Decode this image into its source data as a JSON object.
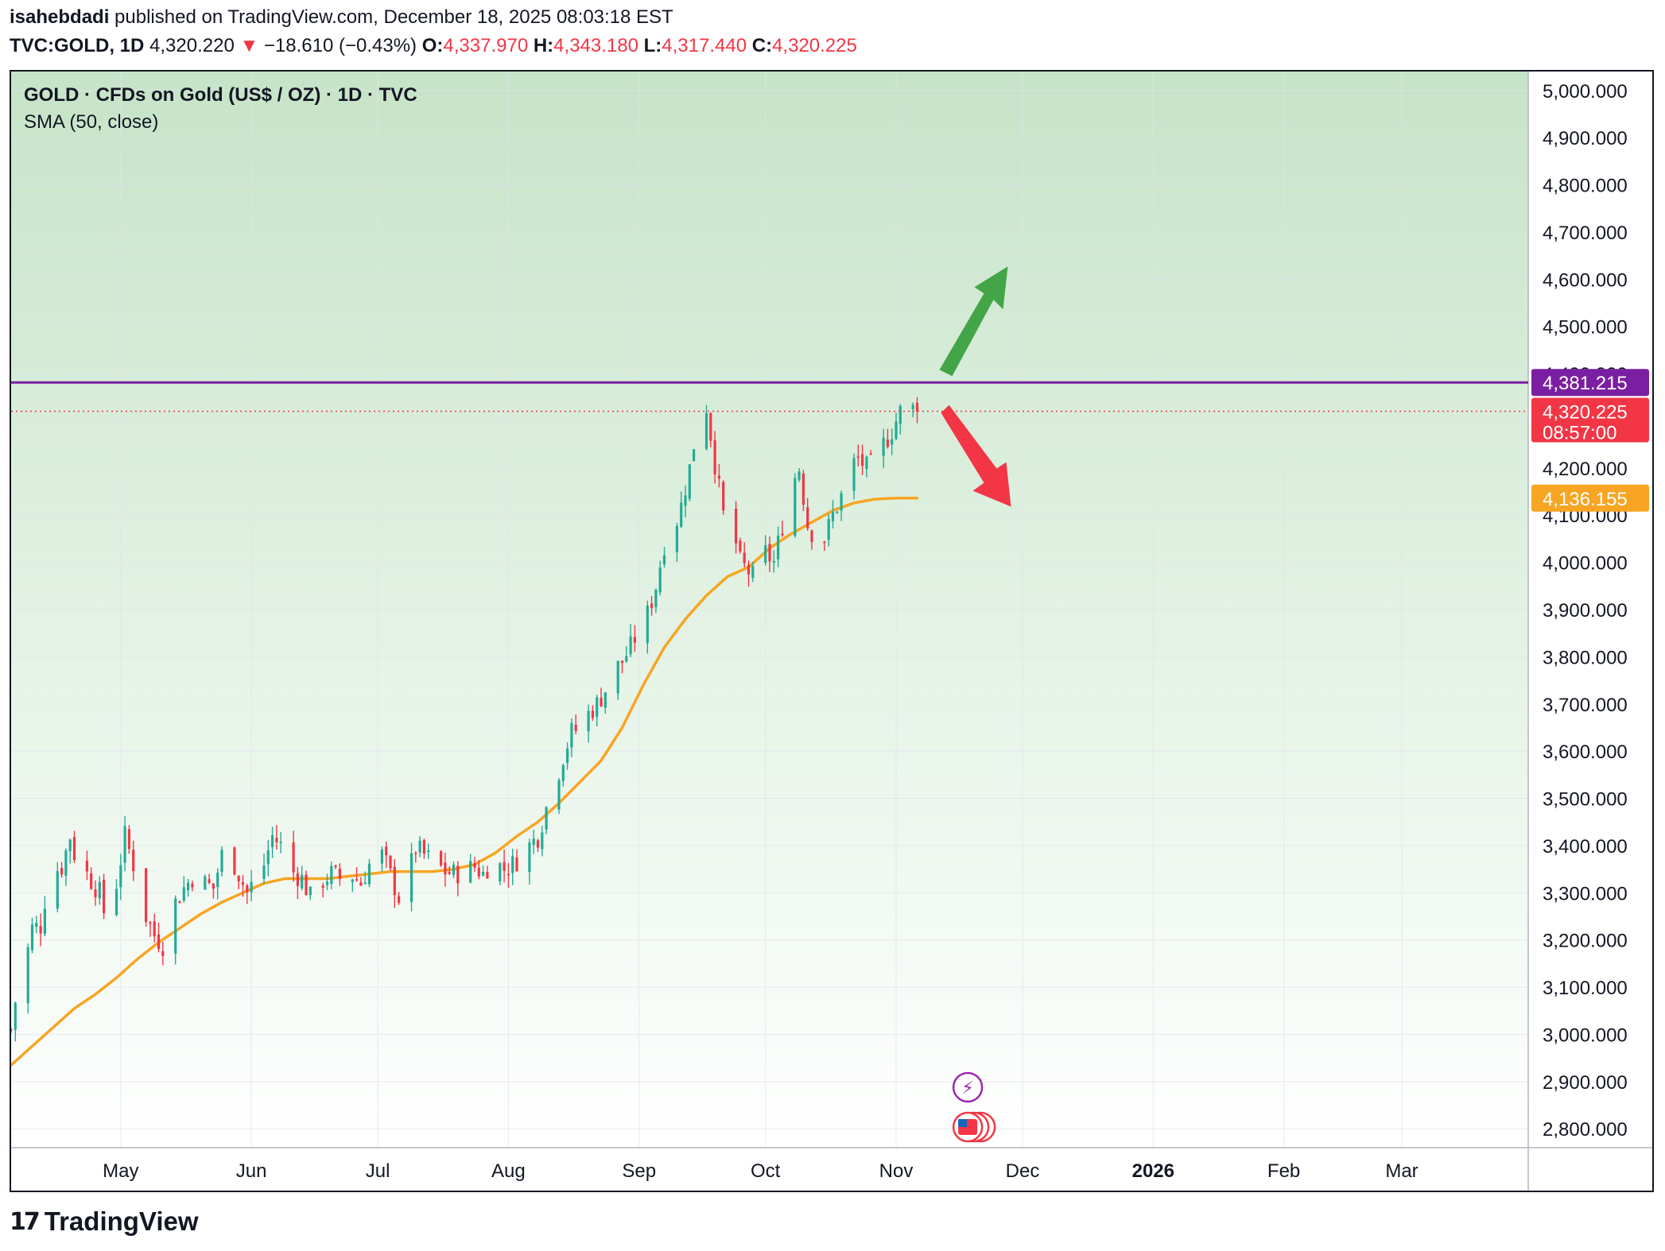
{
  "header": {
    "author": "isahebdadi",
    "published": "published on TradingView.com, December 18, 2025 08:03:18 EST",
    "symbol": "TVC:GOLD, 1D",
    "last": "4,320.220",
    "change": "−18.610 (−0.43%)",
    "o_label": "O:",
    "o": "4,337.970",
    "h_label": "H:",
    "h": "4,343.180",
    "l_label": "L:",
    "l": "4,317.440",
    "c_label": "C:",
    "c": "4,320.225",
    "down_icon": "triangle-down-icon"
  },
  "legend": {
    "title": "GOLD · CFDs on Gold (US$ / OZ) · 1D · TVC",
    "indicator": "SMA (50, close)"
  },
  "price_tags": {
    "resistance": "4,381.215",
    "last_price": "4,320.225",
    "countdown": "08:57:00",
    "sma": "4,136.155"
  },
  "footer": {
    "brand": "TradingView",
    "logo_icon": "tradingview-logo-icon"
  },
  "colors": {
    "up": "#22ab94",
    "down": "#f23645",
    "sma": "#f7a523",
    "resistance": "#7b1fa2",
    "arrow_up": "#43a547",
    "arrow_down": "#f23645",
    "bg_top": "#c6e4c8",
    "bg_bottom": "#ffffff",
    "sma_tag": "#f7a523",
    "last_tag": "#f23645",
    "res_tag": "#7b1fa2"
  },
  "chart_data": {
    "type": "candlestick",
    "title": "GOLD · CFDs on Gold (US$ / OZ) · 1D · TVC",
    "ylim": [
      2760,
      5040
    ],
    "y_ticks": [
      "2,800.000",
      "2,900.000",
      "3,000.000",
      "3,100.000",
      "3,200.000",
      "3,300.000",
      "3,400.000",
      "3,500.000",
      "3,600.000",
      "3,700.000",
      "3,800.000",
      "3,900.000",
      "4,000.000",
      "4,100.000",
      "4,200.000",
      "4,300.000",
      "4,400.000",
      "4,500.000",
      "4,600.000",
      "4,700.000",
      "4,800.000",
      "4,900.000",
      "5,000.000"
    ],
    "y_tick_values": [
      2800,
      2900,
      3000,
      3100,
      3200,
      3300,
      3400,
      3500,
      3600,
      3700,
      3800,
      3900,
      4000,
      4100,
      4200,
      4300,
      4400,
      4500,
      4600,
      4700,
      4800,
      4900,
      5000
    ],
    "x_labels": [
      "May",
      "Jun",
      "Jul",
      "Aug",
      "Sep",
      "Oct",
      "Nov",
      "Dec",
      "2026",
      "Feb",
      "Mar"
    ],
    "x_label_days": [
      29,
      60,
      90,
      121,
      152,
      182,
      213,
      243,
      274,
      305,
      333
    ],
    "x_start_day": 3,
    "x_end_day": 363,
    "resistance_level": 4381.215,
    "last_close": 4320.225,
    "sma_last": 4136.155,
    "close_path": [
      [
        3,
        3010
      ],
      [
        5,
        3130
      ],
      [
        7,
        3180
      ],
      [
        8,
        3225
      ],
      [
        10,
        3230
      ],
      [
        12,
        3340
      ],
      [
        15,
        3355
      ],
      [
        17,
        3420
      ],
      [
        19,
        3345
      ],
      [
        21,
        3340
      ],
      [
        24,
        3300
      ],
      [
        26,
        3220
      ],
      [
        28,
        3320
      ],
      [
        30,
        3420
      ],
      [
        33,
        3330
      ],
      [
        35,
        3250
      ],
      [
        37,
        3210
      ],
      [
        39,
        3190
      ],
      [
        42,
        3280
      ],
      [
        44,
        3310
      ],
      [
        47,
        3345
      ],
      [
        49,
        3320
      ],
      [
        51,
        3310
      ],
      [
        53,
        3380
      ],
      [
        56,
        3360
      ],
      [
        59,
        3300
      ],
      [
        61,
        3330
      ],
      [
        63,
        3360
      ],
      [
        65,
        3420
      ],
      [
        67,
        3400
      ],
      [
        69,
        3350
      ],
      [
        72,
        3330
      ],
      [
        74,
        3290
      ],
      [
        76,
        3320
      ],
      [
        79,
        3340
      ],
      [
        81,
        3330
      ],
      [
        83,
        3345
      ],
      [
        86,
        3320
      ],
      [
        88,
        3360
      ],
      [
        90,
        3400
      ],
      [
        92,
        3360
      ],
      [
        95,
        3290
      ],
      [
        97,
        3330
      ],
      [
        99,
        3395
      ],
      [
        101,
        3380
      ],
      [
        104,
        3360
      ],
      [
        106,
        3345
      ],
      [
        108,
        3340
      ],
      [
        110,
        3345
      ],
      [
        113,
        3355
      ],
      [
        115,
        3340
      ],
      [
        117,
        3370
      ],
      [
        120,
        3350
      ],
      [
        122,
        3360
      ],
      [
        124,
        3380
      ],
      [
        126,
        3400
      ],
      [
        128,
        3420
      ],
      [
        130,
        3480
      ],
      [
        132,
        3530
      ],
      [
        134,
        3590
      ],
      [
        136,
        3640
      ],
      [
        138,
        3650
      ],
      [
        140,
        3680
      ],
      [
        142,
        3700
      ],
      [
        144,
        3730
      ],
      [
        146,
        3770
      ],
      [
        148,
        3790
      ],
      [
        150,
        3820
      ],
      [
        152,
        3860
      ],
      [
        154,
        3890
      ],
      [
        156,
        3950
      ],
      [
        158,
        4040
      ],
      [
        160,
        4060
      ],
      [
        162,
        4120
      ],
      [
        164,
        4200
      ],
      [
        166,
        4300
      ],
      [
        168,
        4330
      ],
      [
        170,
        4210
      ],
      [
        172,
        4100
      ],
      [
        174,
        4080
      ],
      [
        176,
        4000
      ],
      [
        178,
        3980
      ],
      [
        180,
        3960
      ],
      [
        182,
        4020
      ],
      [
        184,
        4000
      ],
      [
        186,
        4080
      ],
      [
        188,
        4160
      ],
      [
        190,
        4200
      ],
      [
        192,
        4080
      ],
      [
        194,
        4050
      ],
      [
        196,
        4050
      ],
      [
        198,
        4100
      ],
      [
        200,
        4140
      ],
      [
        202,
        4200
      ],
      [
        204,
        4220
      ],
      [
        206,
        4200
      ],
      [
        208,
        4210
      ],
      [
        210,
        4250
      ],
      [
        212,
        4280
      ],
      [
        214,
        4320
      ],
      [
        216,
        4330
      ],
      [
        218,
        4320
      ]
    ],
    "sma_path": [
      [
        3,
        2935
      ],
      [
        8,
        2975
      ],
      [
        13,
        3015
      ],
      [
        18,
        3055
      ],
      [
        23,
        3085
      ],
      [
        28,
        3120
      ],
      [
        33,
        3160
      ],
      [
        38,
        3195
      ],
      [
        43,
        3225
      ],
      [
        48,
        3255
      ],
      [
        53,
        3280
      ],
      [
        58,
        3300
      ],
      [
        63,
        3320
      ],
      [
        68,
        3330
      ],
      [
        73,
        3330
      ],
      [
        78,
        3330
      ],
      [
        83,
        3335
      ],
      [
        88,
        3340
      ],
      [
        93,
        3345
      ],
      [
        98,
        3345
      ],
      [
        103,
        3345
      ],
      [
        108,
        3350
      ],
      [
        113,
        3360
      ],
      [
        118,
        3385
      ],
      [
        123,
        3420
      ],
      [
        128,
        3450
      ],
      [
        133,
        3490
      ],
      [
        138,
        3535
      ],
      [
        143,
        3580
      ],
      [
        148,
        3650
      ],
      [
        153,
        3740
      ],
      [
        158,
        3820
      ],
      [
        163,
        3880
      ],
      [
        168,
        3930
      ],
      [
        173,
        3970
      ],
      [
        178,
        3990
      ],
      [
        183,
        4030
      ],
      [
        188,
        4060
      ],
      [
        193,
        4085
      ],
      [
        198,
        4110
      ],
      [
        203,
        4126
      ],
      [
        208,
        4134
      ],
      [
        213,
        4136
      ],
      [
        218,
        4136
      ]
    ],
    "sma_note": "SMA path reconstructed; last value 4,136.155"
  }
}
